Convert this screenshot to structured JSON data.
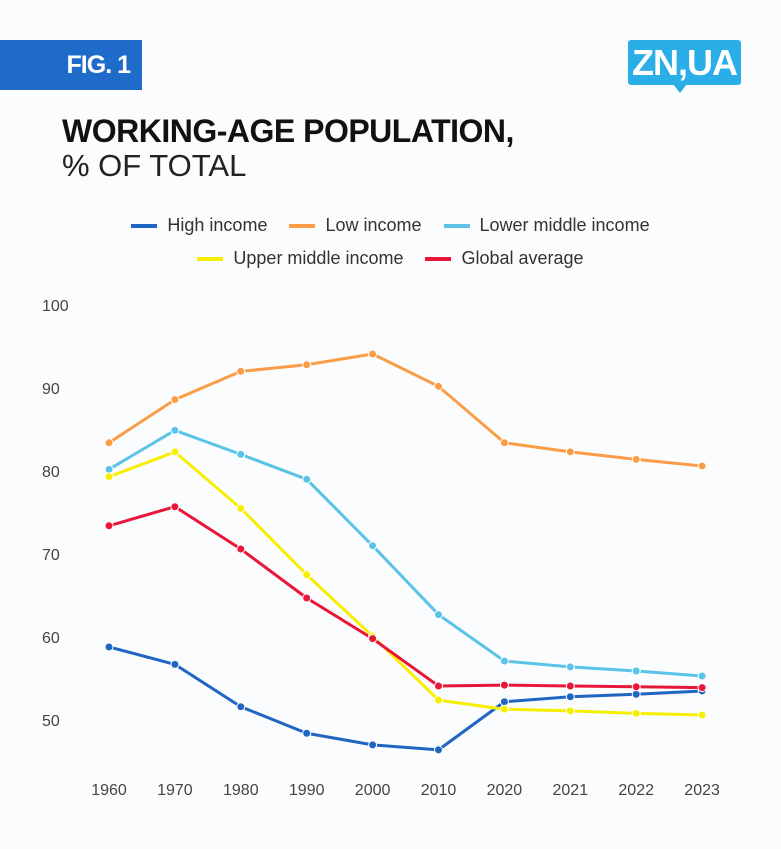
{
  "badge": "FIG. 1",
  "logo": "ZN,UA",
  "chart_data": {
    "type": "line",
    "title": "WORKING-AGE POPULATION,",
    "subtitle": "% OF TOTAL",
    "categories": [
      "1960",
      "1970",
      "1980",
      "1990",
      "2000",
      "2010",
      "2020",
      "2021",
      "2022",
      "2023"
    ],
    "yticks": [
      "100",
      "90",
      "80",
      "70",
      "60",
      "50"
    ],
    "ylim": [
      50,
      100
    ],
    "legend_placement": "top",
    "series": [
      {
        "name": "High income",
        "color": "#1f65c1",
        "values": [
          58.8,
          56.7,
          51.6,
          48.4,
          47.0,
          46.4,
          52.2,
          52.8,
          53.1,
          53.5
        ]
      },
      {
        "name": "Low income",
        "color": "#fb9d47",
        "values": [
          83.4,
          88.6,
          92.0,
          92.8,
          94.1,
          90.2,
          83.4,
          82.3,
          81.4,
          80.6
        ]
      },
      {
        "name": "Lower middle income",
        "color": "#5bc3e6",
        "values": [
          80.2,
          84.9,
          82.0,
          79.0,
          71.0,
          62.7,
          57.1,
          56.4,
          55.9,
          55.3
        ]
      },
      {
        "name": "Upper middle income",
        "color": "#f7ee00",
        "values": [
          79.3,
          82.3,
          75.5,
          67.5,
          60.1,
          52.4,
          51.3,
          51.1,
          50.8,
          50.6
        ]
      },
      {
        "name": "Global average",
        "color": "#e8173a",
        "values": [
          73.4,
          75.7,
          70.6,
          64.7,
          59.8,
          54.1,
          54.2,
          54.1,
          54.0,
          53.9
        ]
      }
    ]
  }
}
